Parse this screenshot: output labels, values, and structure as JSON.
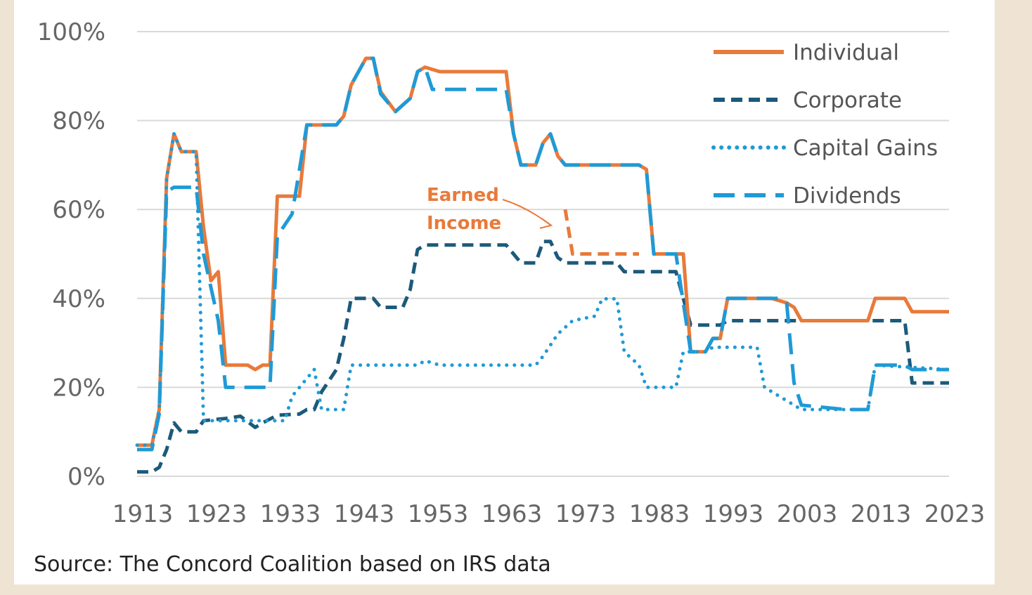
{
  "source_text": "Source: The Concord Coalition based on IRS data",
  "colors": {
    "individual": "#e87a3a",
    "corporate": "#1b5a7a",
    "capital_gains": "#1f9ad6",
    "dividends": "#1f9ad6",
    "grid": "#d9d9d9",
    "background": "#efe4d3"
  },
  "chart_data": {
    "type": "line",
    "title": "",
    "xlabel": "",
    "ylabel": "",
    "xlim": [
      1913,
      2023
    ],
    "ylim": [
      0,
      100
    ],
    "grid": true,
    "legend_position": "top-right",
    "x_ticks": [
      "1913",
      "1923",
      "1933",
      "1943",
      "1953",
      "1963",
      "1973",
      "1983",
      "1993",
      "2003",
      "2013",
      "2023"
    ],
    "y_ticks": [
      "0%",
      "20%",
      "40%",
      "60%",
      "80%",
      "100%"
    ],
    "series": [
      {
        "name": "Individual",
        "style": "solid",
        "color": "#e87a3a",
        "points": [
          [
            1913,
            7
          ],
          [
            1915,
            7
          ],
          [
            1916,
            15
          ],
          [
            1917,
            67
          ],
          [
            1918,
            77
          ],
          [
            1919,
            73
          ],
          [
            1921,
            73
          ],
          [
            1922,
            56
          ],
          [
            1923,
            44
          ],
          [
            1924,
            46
          ],
          [
            1925,
            25
          ],
          [
            1928,
            25
          ],
          [
            1929,
            24
          ],
          [
            1930,
            25
          ],
          [
            1931,
            25
          ],
          [
            1932,
            63
          ],
          [
            1935,
            63
          ],
          [
            1936,
            79
          ],
          [
            1940,
            79
          ],
          [
            1941,
            81
          ],
          [
            1942,
            88
          ],
          [
            1944,
            94
          ],
          [
            1945,
            94
          ],
          [
            1946,
            86.45
          ],
          [
            1948,
            82
          ],
          [
            1950,
            85
          ],
          [
            1951,
            91
          ],
          [
            1952,
            92
          ],
          [
            1954,
            91
          ],
          [
            1963,
            91
          ],
          [
            1964,
            77
          ],
          [
            1965,
            70
          ],
          [
            1967,
            70
          ],
          [
            1968,
            75
          ],
          [
            1969,
            77
          ],
          [
            1970,
            72
          ],
          [
            1971,
            70
          ],
          [
            1981,
            70
          ],
          [
            1982,
            69
          ],
          [
            1983,
            50
          ],
          [
            1987,
            50
          ],
          [
            1988,
            28
          ],
          [
            1990,
            28
          ],
          [
            1991,
            31
          ],
          [
            1992,
            31
          ],
          [
            1993,
            40
          ],
          [
            1999,
            40
          ],
          [
            2001,
            39
          ],
          [
            2002,
            38
          ],
          [
            2003,
            35
          ],
          [
            2012,
            35
          ],
          [
            2013,
            40
          ],
          [
            2017,
            40
          ],
          [
            2018,
            37
          ],
          [
            2023,
            37
          ]
        ]
      },
      {
        "name": "Corporate",
        "style": "dashed",
        "color": "#1b5a7a",
        "points": [
          [
            1913,
            1
          ],
          [
            1915,
            1
          ],
          [
            1916,
            2
          ],
          [
            1917,
            6
          ],
          [
            1918,
            12
          ],
          [
            1919,
            10
          ],
          [
            1921,
            10
          ],
          [
            1922,
            12.5
          ],
          [
            1925,
            13
          ],
          [
            1927,
            13.5
          ],
          [
            1929,
            11
          ],
          [
            1930,
            12
          ],
          [
            1932,
            13.75
          ],
          [
            1935,
            14
          ],
          [
            1936,
            15
          ],
          [
            1937,
            15
          ],
          [
            1938,
            19
          ],
          [
            1940,
            24
          ],
          [
            1941,
            31
          ],
          [
            1942,
            40
          ],
          [
            1945,
            40
          ],
          [
            1946,
            38
          ],
          [
            1949,
            38
          ],
          [
            1950,
            42
          ],
          [
            1951,
            51
          ],
          [
            1952,
            52
          ],
          [
            1963,
            52
          ],
          [
            1964,
            50
          ],
          [
            1965,
            48
          ],
          [
            1967,
            48
          ],
          [
            1968,
            52.8
          ],
          [
            1969,
            52.8
          ],
          [
            1970,
            49.2
          ],
          [
            1971,
            48
          ],
          [
            1978,
            48
          ],
          [
            1979,
            46
          ],
          [
            1986,
            46
          ],
          [
            1987,
            40
          ],
          [
            1988,
            34
          ],
          [
            1992,
            34
          ],
          [
            1993,
            35
          ],
          [
            2017,
            35
          ],
          [
            2018,
            21
          ],
          [
            2023,
            21
          ]
        ]
      },
      {
        "name": "Capital Gains",
        "style": "dotted",
        "color": "#1f9ad6",
        "points": [
          [
            1913,
            7
          ],
          [
            1915,
            7
          ],
          [
            1916,
            15
          ],
          [
            1917,
            67
          ],
          [
            1918,
            77
          ],
          [
            1919,
            73
          ],
          [
            1921,
            73
          ],
          [
            1922,
            12.5
          ],
          [
            1933,
            12.5
          ],
          [
            1934,
            18
          ],
          [
            1937,
            24
          ],
          [
            1938,
            15
          ],
          [
            1941,
            15
          ],
          [
            1942,
            25
          ],
          [
            1951,
            25
          ],
          [
            1952,
            26
          ],
          [
            1954,
            25
          ],
          [
            1967,
            25
          ],
          [
            1968,
            27
          ],
          [
            1970,
            32
          ],
          [
            1972,
            35
          ],
          [
            1975,
            36
          ],
          [
            1976,
            39.9
          ],
          [
            1978,
            39.9
          ],
          [
            1979,
            28
          ],
          [
            1981,
            25
          ],
          [
            1982,
            20
          ],
          [
            1986,
            20
          ],
          [
            1987,
            28
          ],
          [
            1990,
            28
          ],
          [
            1991,
            29
          ],
          [
            1997,
            29
          ],
          [
            1998,
            20
          ],
          [
            2003,
            15
          ],
          [
            2012,
            15
          ],
          [
            2013,
            25
          ],
          [
            2023,
            24
          ]
        ]
      },
      {
        "name": "Dividends",
        "style": "long-dash",
        "color": "#1f9ad6",
        "points": [
          [
            1913,
            6
          ],
          [
            1915,
            6
          ],
          [
            1916,
            14
          ],
          [
            1917,
            64
          ],
          [
            1918,
            65
          ],
          [
            1921,
            65
          ],
          [
            1922,
            50
          ],
          [
            1924,
            35
          ],
          [
            1925,
            20
          ],
          [
            1931,
            20
          ],
          [
            1932,
            54
          ],
          [
            1934,
            59
          ],
          [
            1936,
            79
          ],
          [
            1940,
            79
          ],
          [
            1941,
            81
          ],
          [
            1942,
            88
          ],
          [
            1944,
            94
          ],
          [
            1945,
            94
          ],
          [
            1946,
            86
          ],
          [
            1948,
            82
          ],
          [
            1950,
            85
          ],
          [
            1951,
            91
          ],
          [
            1952,
            92
          ],
          [
            1953,
            87
          ],
          [
            1963,
            87
          ],
          [
            1964,
            77
          ],
          [
            1965,
            70
          ],
          [
            1967,
            70
          ],
          [
            1968,
            75
          ],
          [
            1969,
            77
          ],
          [
            1970,
            72
          ],
          [
            1971,
            70
          ],
          [
            1981,
            70
          ],
          [
            1982,
            69
          ],
          [
            1983,
            50
          ],
          [
            1986,
            50
          ],
          [
            1988,
            28
          ],
          [
            1990,
            28
          ],
          [
            1991,
            31
          ],
          [
            1992,
            31
          ],
          [
            1993,
            40
          ],
          [
            2000,
            40
          ],
          [
            2001,
            39
          ],
          [
            2002,
            21
          ],
          [
            2003,
            16
          ],
          [
            2009,
            15
          ],
          [
            2012,
            15
          ],
          [
            2013,
            25
          ],
          [
            2017,
            25
          ],
          [
            2018,
            24
          ],
          [
            2023,
            24
          ]
        ]
      },
      {
        "name": "Earned Income",
        "style": "dashed",
        "color": "#e87a3a",
        "points": [
          [
            1971,
            60
          ],
          [
            1972,
            50
          ],
          [
            1981,
            50
          ]
        ]
      }
    ],
    "annotations": [
      {
        "text_lines": [
          "Earned",
          "Income"
        ],
        "points_to": [
          1971,
          58
        ]
      }
    ]
  }
}
